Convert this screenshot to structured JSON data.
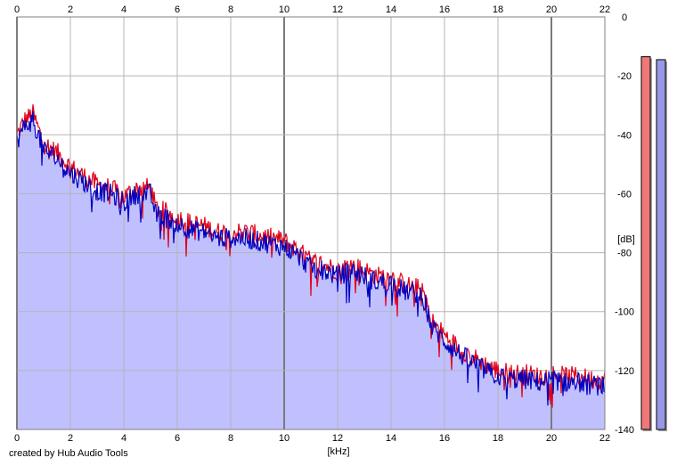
{
  "chart_data": {
    "type": "area",
    "xlabel": "[kHz]",
    "ylabel": "[dB]",
    "xlim": [
      0,
      22
    ],
    "ylim": [
      -140,
      0
    ],
    "xticks": [
      "0",
      "2",
      "4",
      "6",
      "8",
      "10",
      "12",
      "14",
      "16",
      "18",
      "20",
      "22"
    ],
    "yticks": [
      "0",
      "-20",
      "-40",
      "-60",
      "-80",
      "-100",
      "-120",
      "-140"
    ],
    "grid": true,
    "series": [
      {
        "color": "#e00018",
        "x": [
          0,
          0.3,
          0.6,
          1,
          1.5,
          2,
          2.5,
          3,
          3.5,
          4,
          4.5,
          5,
          5.2,
          5.5,
          6,
          6.5,
          7,
          7.5,
          8,
          8.5,
          9,
          9.5,
          10,
          10.5,
          11,
          11.5,
          12,
          12.5,
          13,
          13.5,
          14,
          14.5,
          15,
          15.3,
          15.5,
          16,
          16.5,
          17,
          17.5,
          18,
          18.5,
          19,
          19.5,
          20,
          20.5,
          21,
          21.5,
          22
        ],
        "values": [
          -40,
          -35,
          -33,
          -43,
          -46,
          -51,
          -54,
          -57,
          -58,
          -61,
          -58,
          -58,
          -65,
          -66,
          -68,
          -70,
          -71,
          -73,
          -73,
          -73,
          -74,
          -75,
          -76,
          -79,
          -83,
          -84,
          -86,
          -84,
          -86,
          -88,
          -88,
          -91,
          -92,
          -95,
          -103,
          -108,
          -112,
          -115,
          -118,
          -120,
          -121,
          -121,
          -122,
          -121,
          -122,
          -122,
          -123,
          -123
        ]
      },
      {
        "color": "#0000c0",
        "x": [
          0,
          0.3,
          0.6,
          1,
          1.5,
          2,
          2.5,
          3,
          3.5,
          4,
          4.5,
          5,
          5.2,
          5.5,
          6,
          6.5,
          7,
          7.5,
          8,
          8.5,
          9,
          9.5,
          10,
          10.5,
          11,
          11.5,
          12,
          12.5,
          13,
          13.5,
          14,
          14.5,
          15,
          15.3,
          15.5,
          16,
          16.5,
          17,
          17.5,
          18,
          18.5,
          19,
          19.5,
          20,
          20.5,
          21,
          21.5,
          22
        ],
        "values": [
          -42,
          -37,
          -35,
          -45,
          -48,
          -53,
          -56,
          -59,
          -60,
          -63,
          -60,
          -60,
          -67,
          -68,
          -70,
          -72,
          -73,
          -75,
          -75,
          -75,
          -76,
          -77,
          -78,
          -81,
          -85,
          -86,
          -88,
          -86,
          -88,
          -90,
          -90,
          -93,
          -94,
          -97,
          -105,
          -110,
          -114,
          -117,
          -120,
          -122,
          -123,
          -123,
          -124,
          -123,
          -124,
          -124,
          -125,
          -125
        ]
      }
    ],
    "meters": [
      {
        "color": "#f07878",
        "level": -13.5
      },
      {
        "color": "#9898e8",
        "level": -14.5
      }
    ],
    "fill_color": "#c0c0ff",
    "background": "#ffffff"
  },
  "caption": "created by Hub Audio Tools"
}
